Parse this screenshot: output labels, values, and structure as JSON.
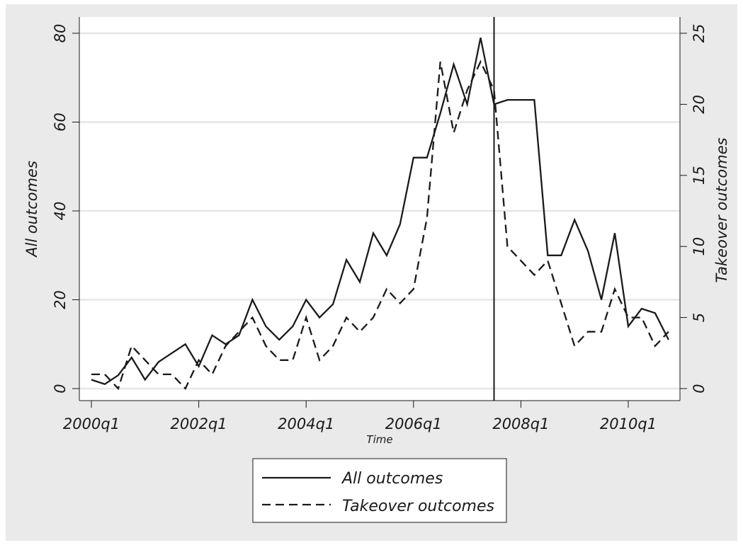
{
  "chart_data": {
    "type": "line",
    "xlabel": "Time",
    "ylabel_left": "All outcomes",
    "ylabel_right": "Takeover outcomes",
    "x_tick_labels": [
      "2000q1",
      "2002q1",
      "2004q1",
      "2006q1",
      "2008q1",
      "2010q1"
    ],
    "x_tick_index": [
      0,
      8,
      16,
      24,
      32,
      40
    ],
    "ylim_left": [
      0,
      80
    ],
    "yticks_left": [
      0,
      20,
      40,
      60,
      80
    ],
    "ylim_right": [
      0,
      25
    ],
    "yticks_right": [
      0,
      5,
      10,
      15,
      20,
      25
    ],
    "grid": true,
    "legend_position": "bottom",
    "vline_at": "2007q3",
    "series": [
      {
        "name": "All outcomes",
        "axis": "left",
        "style": "solid",
        "x": [
          "2000q1",
          "2000q2",
          "2000q3",
          "2000q4",
          "2001q1",
          "2001q2",
          "2001q3",
          "2001q4",
          "2002q1",
          "2002q2",
          "2002q3",
          "2002q4",
          "2003q1",
          "2003q2",
          "2003q3",
          "2003q4",
          "2004q1",
          "2004q2",
          "2004q3",
          "2004q4",
          "2005q1",
          "2005q2",
          "2005q3",
          "2005q4",
          "2006q1",
          "2006q2",
          "2006q3",
          "2006q4",
          "2007q1",
          "2007q2",
          "2007q3",
          "2007q4",
          "2008q1",
          "2008q2",
          "2008q3",
          "2008q4",
          "2009q1",
          "2009q2",
          "2009q3",
          "2009q4",
          "2010q1",
          "2010q2",
          "2010q3",
          "2010q4"
        ],
        "values": [
          2,
          1,
          3,
          7,
          2,
          6,
          8,
          10,
          5,
          12,
          10,
          12,
          20,
          14,
          11,
          14,
          20,
          16,
          19,
          29,
          24,
          35,
          30,
          37,
          52,
          52,
          62,
          73,
          64,
          79,
          64,
          65,
          65,
          65,
          30,
          30,
          38,
          31,
          20,
          35,
          14,
          18,
          17,
          11
        ]
      },
      {
        "name": "Takeover outcomes",
        "axis": "right",
        "style": "dashed",
        "x": [
          "2000q1",
          "2000q2",
          "2000q3",
          "2000q4",
          "2001q1",
          "2001q2",
          "2001q3",
          "2001q4",
          "2002q1",
          "2002q2",
          "2002q3",
          "2002q4",
          "2003q1",
          "2003q2",
          "2003q3",
          "2003q4",
          "2004q1",
          "2004q2",
          "2004q3",
          "2004q4",
          "2005q1",
          "2005q2",
          "2005q3",
          "2005q4",
          "2006q1",
          "2006q2",
          "2006q3",
          "2006q4",
          "2007q1",
          "2007q2",
          "2007q3",
          "2007q4",
          "2008q1",
          "2008q2",
          "2008q3",
          "2008q4",
          "2009q1",
          "2009q2",
          "2009q3",
          "2009q4",
          "2010q1",
          "2010q2",
          "2010q3",
          "2010q4"
        ],
        "values": [
          1,
          1,
          0,
          3,
          2,
          1,
          1,
          0,
          2,
          1,
          3,
          4,
          5,
          3,
          2,
          2,
          5,
          2,
          3,
          5,
          4,
          5,
          7,
          6,
          7,
          12,
          23,
          18,
          21,
          23,
          21,
          10,
          9,
          8,
          9,
          6,
          3,
          4,
          4,
          7,
          5,
          5,
          3,
          4
        ]
      }
    ]
  }
}
